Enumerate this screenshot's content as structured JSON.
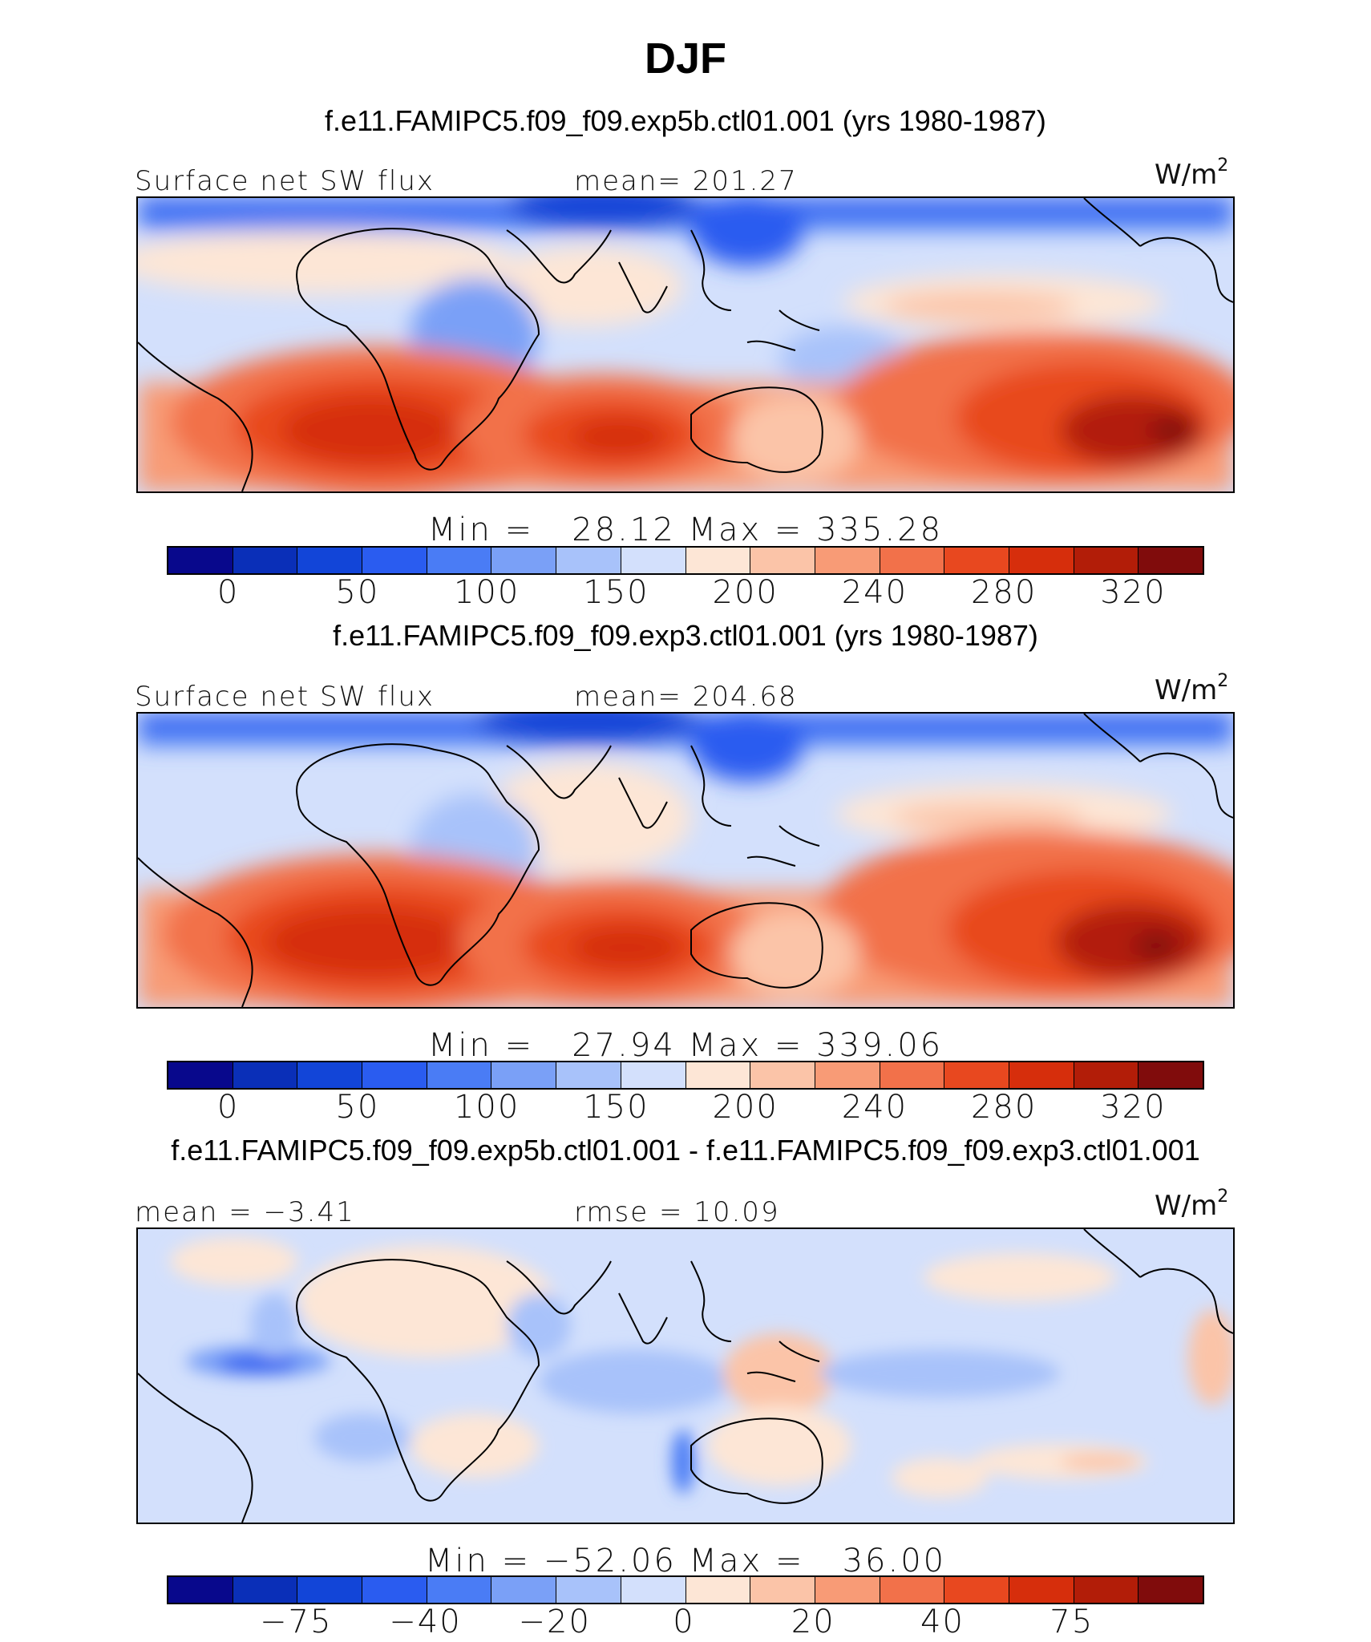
{
  "title": "DJF",
  "colors": {
    "abs_scale": [
      "#08088c",
      "#0a2fb8",
      "#1245d8",
      "#2a5cf0",
      "#4a7cf5",
      "#7aa0f7",
      "#a8c2fa",
      "#d3e0fc",
      "#fde6d6",
      "#fbc4a8",
      "#f89b76",
      "#f2714a",
      "#e8481f",
      "#d62e0c",
      "#b21d08",
      "#800c0c"
    ],
    "diff_scale": [
      "#08088c",
      "#0a2fb8",
      "#1245d8",
      "#2a5cf0",
      "#4a7cf5",
      "#7aa0f7",
      "#a8c2fa",
      "#d3e0fc",
      "#fde6d6",
      "#fbc4a8",
      "#f89b76",
      "#f2714a",
      "#e8481f",
      "#d62e0c",
      "#b21d08",
      "#800c0c"
    ]
  },
  "panels": [
    {
      "case_title": "f.e11.FAMIPC5.f09_f09.exp5b.ctl01.001 (yrs 1980-1987)",
      "left_label": "Surface net SW flux",
      "center_label": "mean= 201.27",
      "units": "W/m",
      "units_exp": "2",
      "minmax": "Min =   28.12 Max = 335.28",
      "ticks": [
        "0",
        "50",
        "100",
        "150",
        "200",
        "240",
        "280",
        "320"
      ],
      "scale": "abs_scale"
    },
    {
      "case_title": "f.e11.FAMIPC5.f09_f09.exp3.ctl01.001 (yrs 1980-1987)",
      "left_label": "Surface net SW flux",
      "center_label": "mean= 204.68",
      "units": "W/m",
      "units_exp": "2",
      "minmax": "Min =   27.94 Max = 339.06",
      "ticks": [
        "0",
        "50",
        "100",
        "150",
        "200",
        "240",
        "280",
        "320"
      ],
      "scale": "abs_scale"
    },
    {
      "case_title": "f.e11.FAMIPC5.f09_f09.exp5b.ctl01.001 - f.e11.FAMIPC5.f09_f09.exp3.ctl01.001",
      "left_label": "mean =  −3.41",
      "center_label": "rmse =   10.09",
      "units": "W/m",
      "units_exp": "2",
      "minmax": "Min = −52.06 Max =   36.00",
      "ticks": [
        "−75",
        "−40",
        "−20",
        "0",
        "20",
        "40",
        "75"
      ],
      "scale": "diff_scale"
    }
  ]
}
